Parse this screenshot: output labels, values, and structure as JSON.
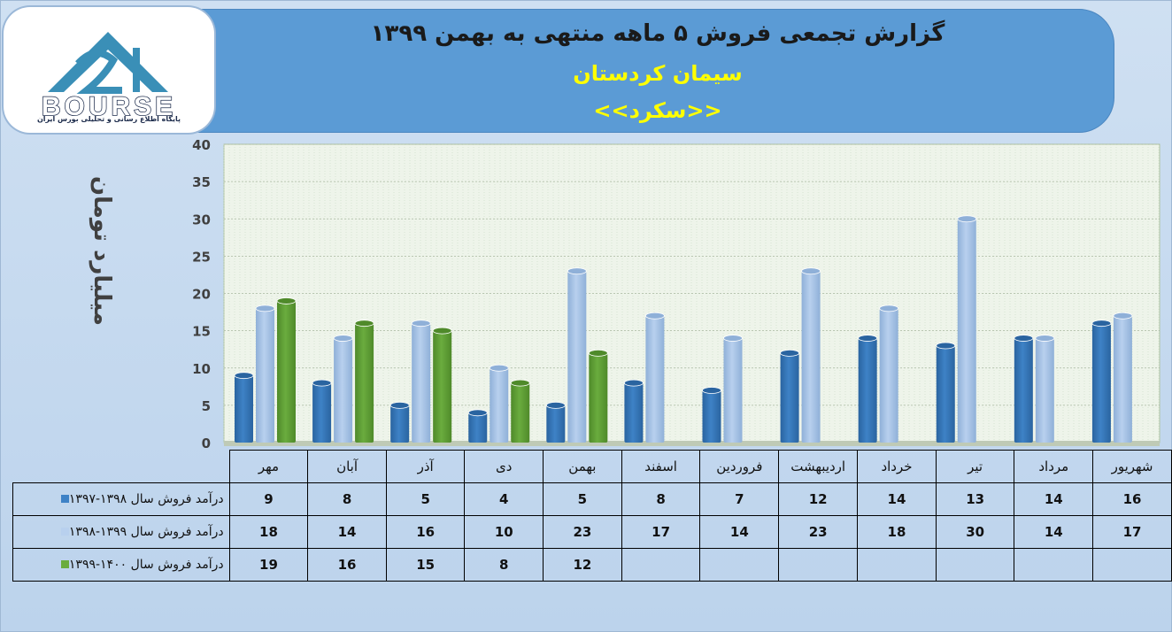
{
  "header": {
    "title": "گزارش تجمعی فروش ۵ ماهه منتهی به بهمن ۱۳۹۹",
    "company": "سیمان کردستان",
    "symbol": "<<سکرد>>"
  },
  "logo": {
    "brand": "BOURSE",
    "tagline": "پایگاه اطلاع رسانی و تحلیلی بورس ایران"
  },
  "colors": {
    "series1": "#3e82c6",
    "series2": "#b8d0ee",
    "series3": "#6aac3e",
    "banner": "#5b9bd5",
    "title_accent": "#ffff00"
  },
  "chart_data": {
    "type": "bar",
    "ylabel": "میلیارد تومان",
    "ylim": [
      0,
      40
    ],
    "yticks": [
      0,
      5,
      10,
      15,
      20,
      25,
      30,
      35,
      40
    ],
    "grid": true,
    "categories": [
      "مهر",
      "آبان",
      "آذر",
      "دی",
      "بهمن",
      "اسفند",
      "فروردین",
      "اردیبهشت",
      "خرداد",
      "تیر",
      "مرداد",
      "شهریور"
    ],
    "series": [
      {
        "name": "درآمد فروش سال ۱۳۹۸-۱۳۹۷",
        "values": [
          9,
          8,
          5,
          4,
          5,
          8,
          7,
          12,
          14,
          13,
          14,
          16
        ]
      },
      {
        "name": "درآمد فروش سال ۱۳۹۹-۱۳۹۸",
        "values": [
          18,
          14,
          16,
          10,
          23,
          17,
          14,
          23,
          18,
          30,
          14,
          17
        ]
      },
      {
        "name": "درآمد فروش سال ۱۴۰۰-۱۳۹۹",
        "values": [
          19,
          16,
          15,
          8,
          12,
          null,
          null,
          null,
          null,
          null,
          null,
          null
        ]
      }
    ]
  }
}
